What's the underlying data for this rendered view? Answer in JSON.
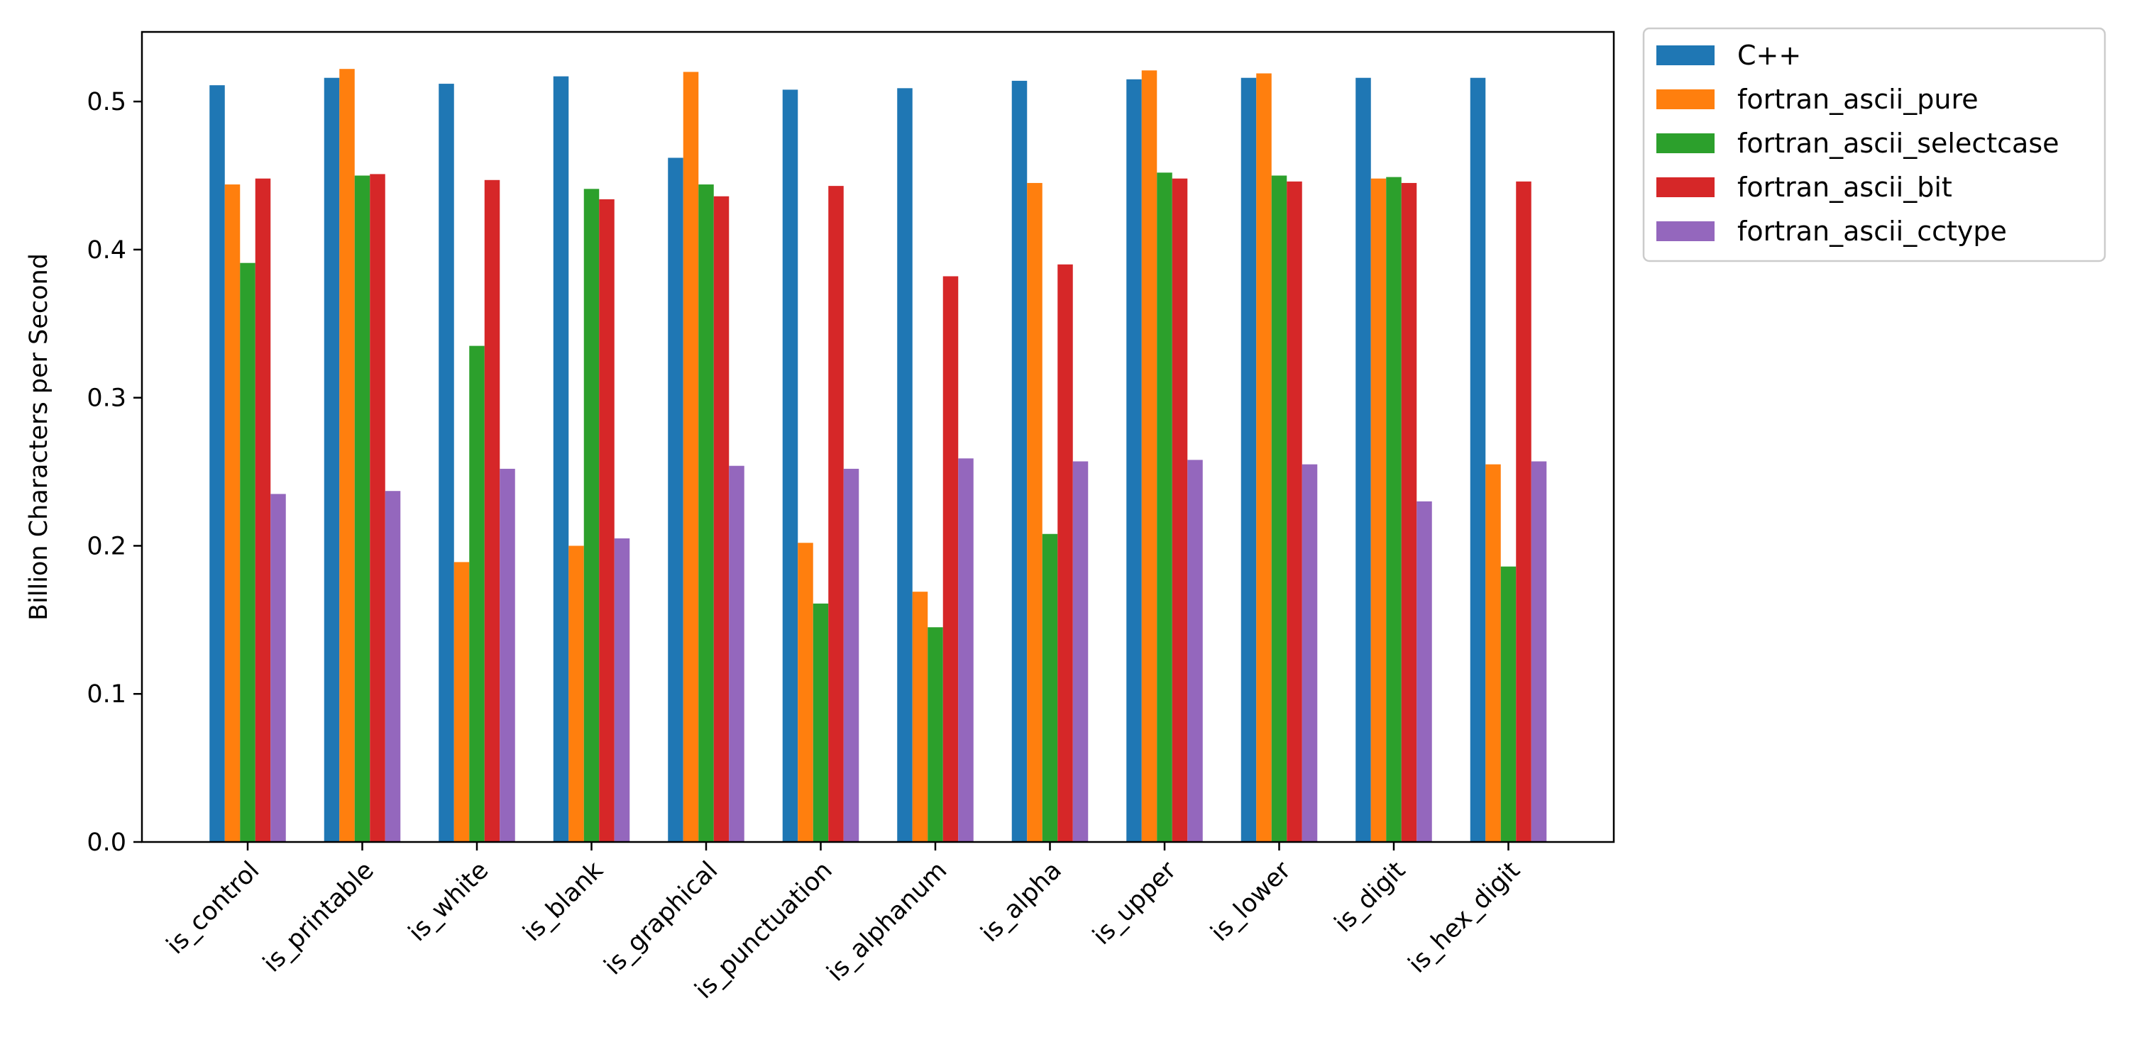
{
  "chart_data": {
    "type": "bar",
    "title": "",
    "xlabel": "",
    "ylabel": "Billion Characters per Second",
    "ylim": [
      0,
      0.547
    ],
    "yticks": [
      "0.0",
      "0.1",
      "0.2",
      "0.3",
      "0.4",
      "0.5"
    ],
    "grid": false,
    "legend_position": "outside-top-right",
    "categories": [
      "is_control",
      "is_printable",
      "is_white",
      "is_blank",
      "is_graphical",
      "is_punctuation",
      "is_alphanum",
      "is_alpha",
      "is_upper",
      "is_lower",
      "is_digit",
      "is_hex_digit"
    ],
    "series": [
      {
        "name": "C++",
        "color": "#1f77b4",
        "values": [
          0.511,
          0.516,
          0.512,
          0.517,
          0.462,
          0.508,
          0.509,
          0.514,
          0.515,
          0.516,
          0.516,
          0.516
        ]
      },
      {
        "name": "fortran_ascii_pure",
        "color": "#ff7f0e",
        "values": [
          0.444,
          0.522,
          0.189,
          0.2,
          0.52,
          0.202,
          0.169,
          0.445,
          0.521,
          0.519,
          0.448,
          0.255
        ]
      },
      {
        "name": "fortran_ascii_selectcase",
        "color": "#2ca02c",
        "values": [
          0.391,
          0.45,
          0.335,
          0.441,
          0.444,
          0.161,
          0.145,
          0.208,
          0.452,
          0.45,
          0.449,
          0.186
        ]
      },
      {
        "name": "fortran_ascii_bit",
        "color": "#d62728",
        "values": [
          0.448,
          0.451,
          0.447,
          0.434,
          0.436,
          0.443,
          0.382,
          0.39,
          0.448,
          0.446,
          0.445,
          0.446
        ]
      },
      {
        "name": "fortran_ascii_cctype",
        "color": "#9467bd",
        "values": [
          0.235,
          0.237,
          0.252,
          0.205,
          0.254,
          0.252,
          0.259,
          0.257,
          0.258,
          0.255,
          0.23,
          0.257
        ]
      }
    ]
  }
}
